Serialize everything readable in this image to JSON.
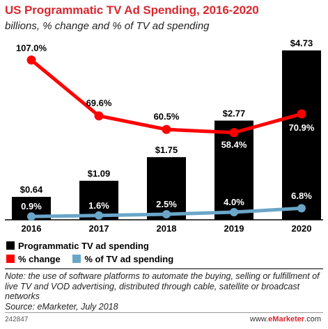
{
  "chart_data": {
    "type": "bar",
    "title": "US Programmatic TV Ad Spending, 2016-2020",
    "subtitle": "billions, % change and % of TV ad spending",
    "categories": [
      "2016",
      "2017",
      "2018",
      "2019",
      "2020"
    ],
    "series": [
      {
        "name": "Programmatic TV ad spending",
        "kind": "bar",
        "color": "#000000",
        "values": [
          0.64,
          1.09,
          1.75,
          2.77,
          4.73
        ],
        "labels": [
          "$0.64",
          "$1.09",
          "$1.75",
          "$2.77",
          "$4.73"
        ]
      },
      {
        "name": "% change",
        "kind": "line",
        "color": "#ff0000",
        "values": [
          107.0,
          69.6,
          60.5,
          58.4,
          70.9
        ],
        "labels": [
          "107.0%",
          "69.6%",
          "60.5%",
          "58.4%",
          "70.9%"
        ]
      },
      {
        "name": "% of TV ad spending",
        "kind": "line",
        "color": "#6aa6c8",
        "values": [
          0.9,
          1.6,
          2.5,
          4.0,
          6.8
        ],
        "labels": [
          "0.9%",
          "1.6%",
          "2.5%",
          "4.0%",
          "6.8%"
        ]
      }
    ],
    "ylim_bars": [
      0,
      5.4
    ],
    "ylim_change": [
      0,
      150
    ],
    "grid": false,
    "legend_position": "bottom-left"
  },
  "note": {
    "text": "Note: the use of software platforms to automate the buying, selling or fulfillment of live TV and VOD advertising, distributed through cable, satellite or broadcast networks",
    "source": "Source: eMarketer, July 2018"
  },
  "footer": {
    "chart_id": "242847",
    "brand_prefix": "www.",
    "brand_name": "eMarketer",
    "brand_suffix": ".com"
  }
}
